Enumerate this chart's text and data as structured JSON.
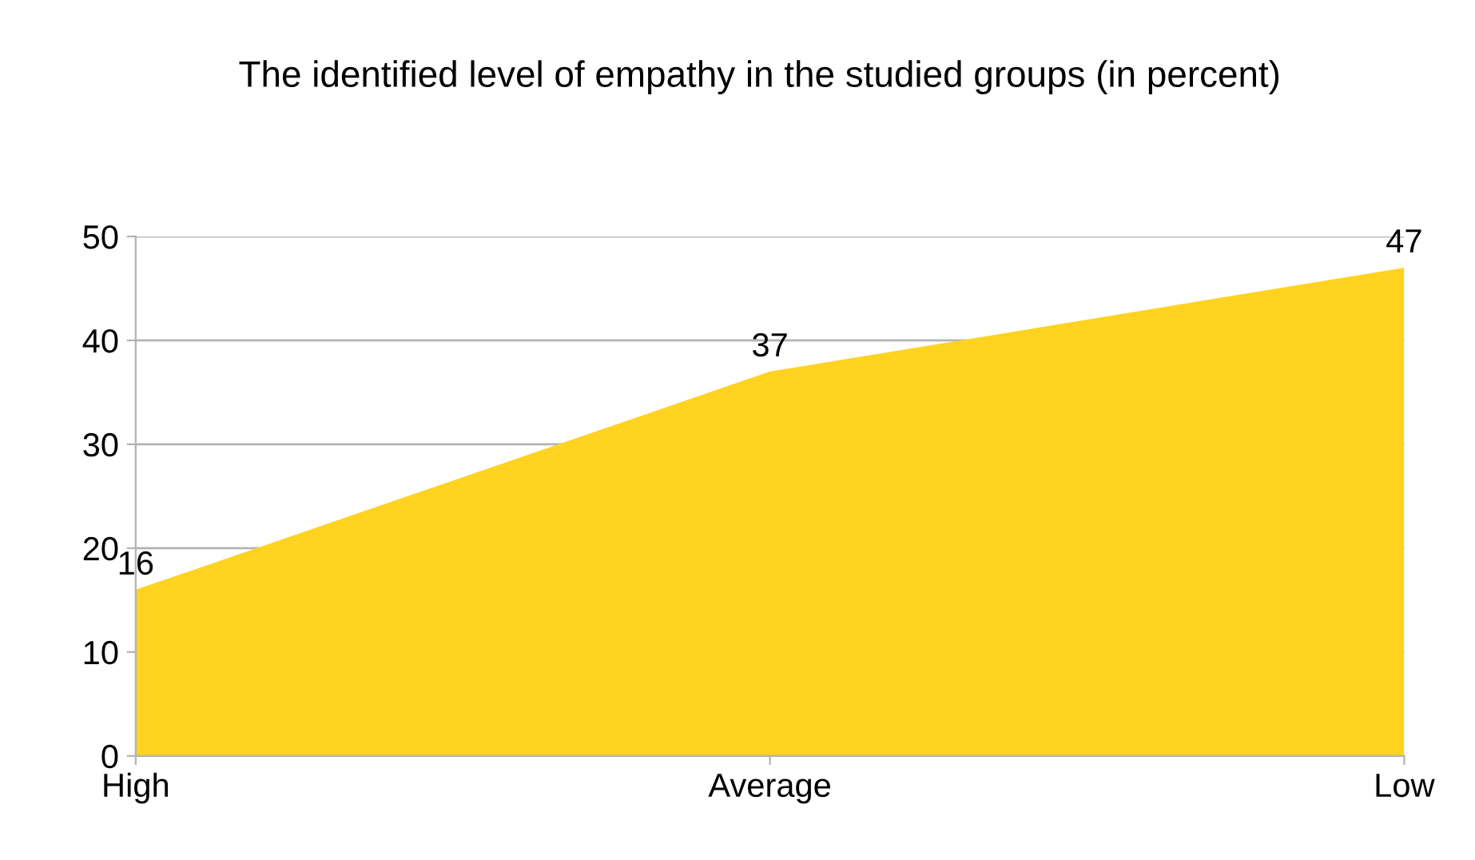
{
  "chart_data": {
    "type": "area",
    "title": "The identified level of empathy in the studied groups (in percent)",
    "categories": [
      "High",
      "Average",
      "Low"
    ],
    "series": [
      {
        "color": "#ffd320",
        "values": [
          16,
          37,
          47
        ]
      }
    ],
    "ylim": [
      0,
      50
    ],
    "yticks": [
      0,
      10,
      20,
      30,
      40,
      50
    ],
    "grid": "y",
    "data_labels": true,
    "legend": false
  }
}
